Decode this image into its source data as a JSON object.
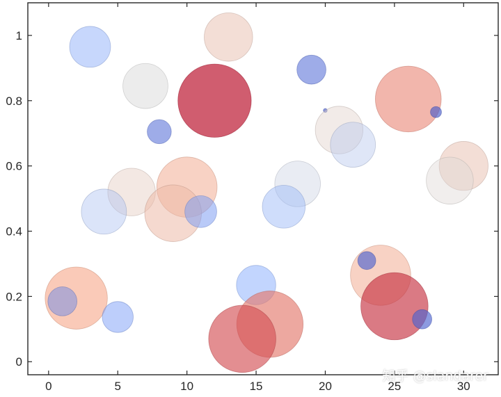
{
  "chart_data": {
    "type": "scatter",
    "subtype": "bubble",
    "title": "",
    "xlabel": "",
    "ylabel": "",
    "xlim": [
      -1.5,
      32.5
    ],
    "ylim": [
      -0.04,
      1.1
    ],
    "xticks": [
      0,
      5,
      10,
      15,
      20,
      25,
      30
    ],
    "yticks": [
      0,
      0.2,
      0.4,
      0.6,
      0.8,
      1
    ],
    "grid": false,
    "colormap": "coolwarm",
    "points": [
      {
        "x": 13,
        "y": 0.995,
        "r": 1.75,
        "c": 0.62,
        "alpha": 0.55
      },
      {
        "x": 3,
        "y": 0.965,
        "r": 1.48,
        "c": 0.28,
        "alpha": 0.55
      },
      {
        "x": 7,
        "y": 0.845,
        "r": 1.63,
        "c": 0.5,
        "alpha": 0.55
      },
      {
        "x": 12,
        "y": 0.8,
        "r": 2.65,
        "c": 0.97,
        "alpha": 0.7
      },
      {
        "x": 8,
        "y": 0.705,
        "r": 0.87,
        "c": 0.1,
        "alpha": 0.6
      },
      {
        "x": 19,
        "y": 0.895,
        "r": 1.05,
        "c": 0.1,
        "alpha": 0.6
      },
      {
        "x": 26,
        "y": 0.805,
        "r": 2.38,
        "c": 0.8,
        "alpha": 0.6
      },
      {
        "x": 28,
        "y": 0.765,
        "r": 0.4,
        "c": 0.04,
        "alpha": 0.65
      },
      {
        "x": 20,
        "y": 0.77,
        "r": 0.14,
        "c": 0.04,
        "alpha": 0.65
      },
      {
        "x": 21,
        "y": 0.71,
        "r": 1.72,
        "c": 0.55,
        "alpha": 0.45
      },
      {
        "x": 22,
        "y": 0.665,
        "r": 1.63,
        "c": 0.38,
        "alpha": 0.45
      },
      {
        "x": 30,
        "y": 0.6,
        "r": 1.77,
        "c": 0.62,
        "alpha": 0.55
      },
      {
        "x": 29,
        "y": 0.555,
        "r": 1.7,
        "c": 0.52,
        "alpha": 0.45
      },
      {
        "x": 18,
        "y": 0.545,
        "r": 1.65,
        "c": 0.45,
        "alpha": 0.45
      },
      {
        "x": 6,
        "y": 0.52,
        "r": 1.72,
        "c": 0.58,
        "alpha": 0.45
      },
      {
        "x": 10,
        "y": 0.535,
        "r": 2.18,
        "c": 0.72,
        "alpha": 0.55
      },
      {
        "x": 4,
        "y": 0.46,
        "r": 1.63,
        "c": 0.35,
        "alpha": 0.45
      },
      {
        "x": 9,
        "y": 0.455,
        "r": 2.05,
        "c": 0.66,
        "alpha": 0.55
      },
      {
        "x": 11,
        "y": 0.46,
        "r": 1.15,
        "c": 0.2,
        "alpha": 0.55
      },
      {
        "x": 17,
        "y": 0.475,
        "r": 1.55,
        "c": 0.3,
        "alpha": 0.5
      },
      {
        "x": 2,
        "y": 0.195,
        "r": 2.25,
        "c": 0.75,
        "alpha": 0.6
      },
      {
        "x": 1,
        "y": 0.185,
        "r": 1.05,
        "c": 0.15,
        "alpha": 0.5
      },
      {
        "x": 5,
        "y": 0.137,
        "r": 1.12,
        "c": 0.22,
        "alpha": 0.55
      },
      {
        "x": 15,
        "y": 0.235,
        "r": 1.42,
        "c": 0.25,
        "alpha": 0.55
      },
      {
        "x": 16,
        "y": 0.115,
        "r": 2.4,
        "c": 0.82,
        "alpha": 0.65
      },
      {
        "x": 14,
        "y": 0.07,
        "r": 2.43,
        "c": 0.88,
        "alpha": 0.65
      },
      {
        "x": 24,
        "y": 0.265,
        "r": 2.18,
        "c": 0.72,
        "alpha": 0.55
      },
      {
        "x": 25,
        "y": 0.17,
        "r": 2.43,
        "c": 0.93,
        "alpha": 0.65
      },
      {
        "x": 23,
        "y": 0.31,
        "r": 0.65,
        "c": 0.06,
        "alpha": 0.65
      },
      {
        "x": 27,
        "y": 0.13,
        "r": 0.7,
        "c": 0.06,
        "alpha": 0.65
      }
    ]
  },
  "watermark": "知乎 @slandarer"
}
